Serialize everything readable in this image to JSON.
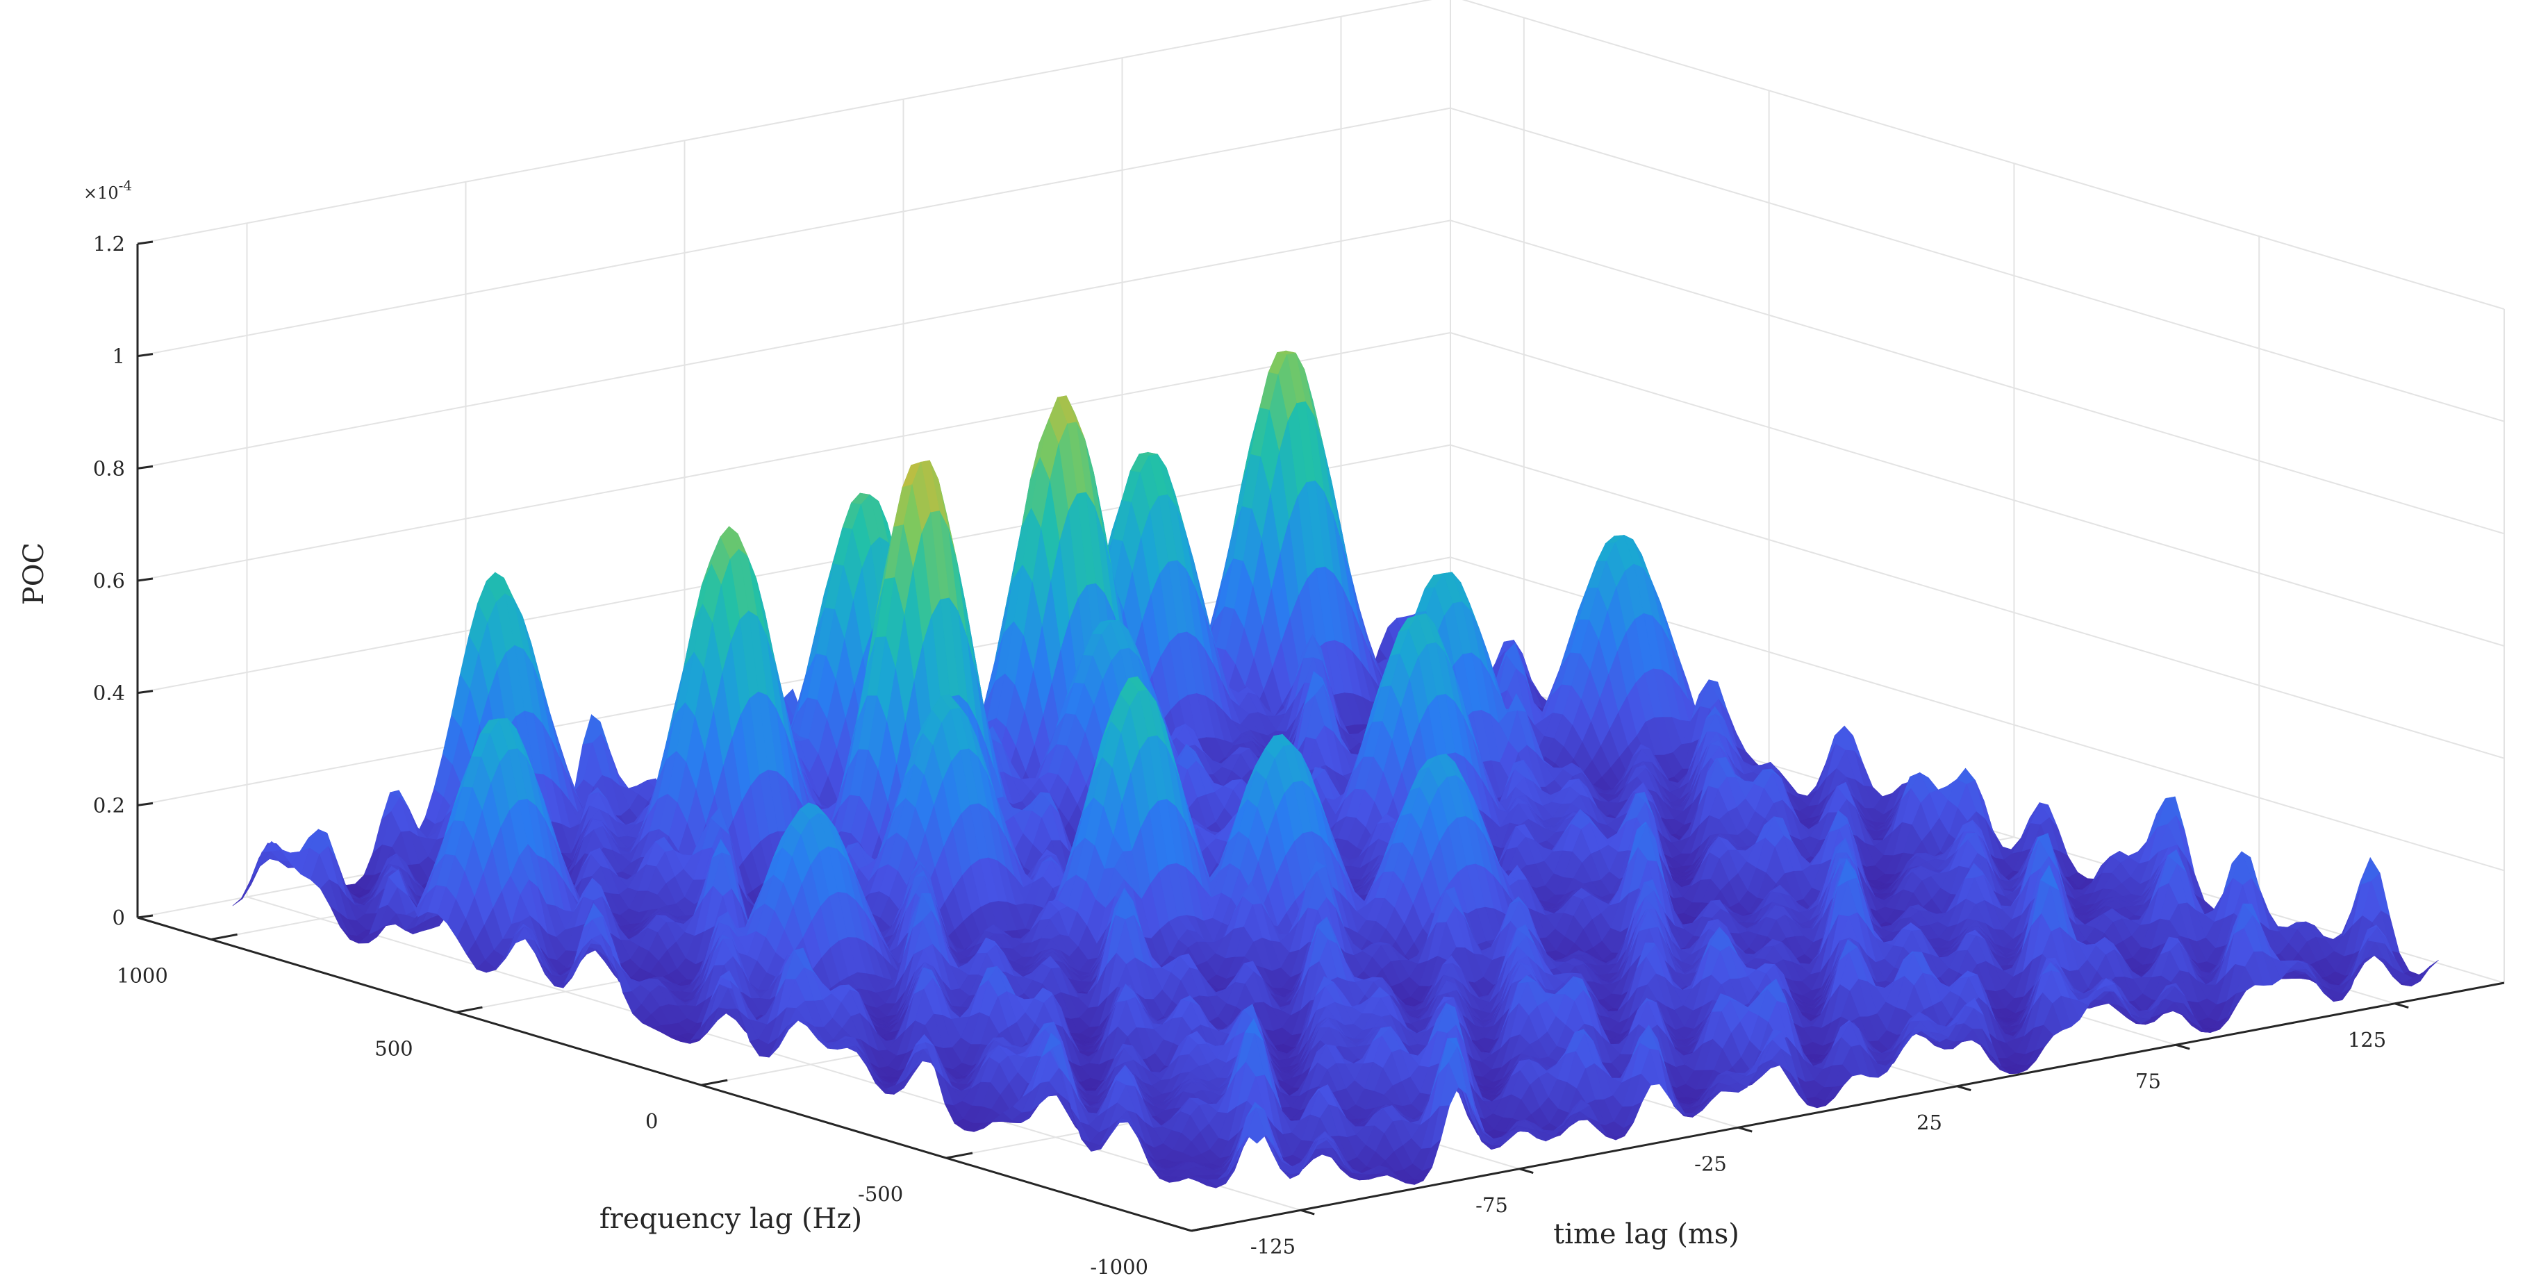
{
  "chart_data": {
    "type": "surface",
    "xlabel": "time lag (ms)",
    "ylabel": "frequency lag (Hz)",
    "zlabel": "POC",
    "z_exponent_label": "×10",
    "z_exponent_power": "-4",
    "xlim": [
      -150,
      150
    ],
    "ylim": [
      -1000,
      1150
    ],
    "zlim": [
      0,
      1.2
    ],
    "z_unit_scale": 0.0001,
    "x_ticks": [
      -125,
      -75,
      -25,
      25,
      75,
      125
    ],
    "x_tick_labels": [
      "-125",
      "-75",
      "-25",
      "25",
      "75",
      "125"
    ],
    "y_ticks": [
      -1000,
      -500,
      0,
      500,
      1000
    ],
    "y_tick_labels": [
      "-1000",
      "-500",
      "0",
      "500",
      "1000"
    ],
    "z_ticks": [
      0,
      0.2,
      0.4,
      0.6,
      0.8,
      1.0,
      1.2
    ],
    "z_tick_labels": [
      "0",
      "0.2",
      "0.4",
      "0.6",
      "0.8",
      "1",
      "1.2"
    ],
    "grid": true,
    "colormap": "parula",
    "colormap_stops": [
      "#3e26a8",
      "#4653e5",
      "#2a7cf0",
      "#1ba6d4",
      "#22c0a8",
      "#7ec85e",
      "#d9b935",
      "#f6dd1e"
    ],
    "data_extent": {
      "x": [
        -135,
        135
      ],
      "y": [
        -1000,
        1090
      ]
    },
    "background_noise_level": 0.2,
    "peaks": [
      {
        "x": -28,
        "y": 640,
        "z": 0.78
      },
      {
        "x": -48,
        "y": 410,
        "z": 0.44
      },
      {
        "x": -34,
        "y": 150,
        "z": 0.52
      },
      {
        "x": 30,
        "y": 870,
        "z": 0.74
      },
      {
        "x": 22,
        "y": 700,
        "z": 0.4
      },
      {
        "x": 98,
        "y": 1020,
        "z": 0.69
      },
      {
        "x": 52,
        "y": 340,
        "z": 0.46
      },
      {
        "x": 125,
        "y": 580,
        "z": 0.43
      },
      {
        "x": -75,
        "y": 1090,
        "z": 0.52
      },
      {
        "x": -120,
        "y": 680,
        "z": 0.44
      },
      {
        "x": -12,
        "y": 50,
        "z": 0.41
      },
      {
        "x": 12,
        "y": -60,
        "z": 0.37
      },
      {
        "x": -55,
        "y": 790,
        "z": 0.65
      },
      {
        "x": 78,
        "y": 520,
        "z": 0.45
      },
      {
        "x": -97,
        "y": 250,
        "z": 0.36
      },
      {
        "x": 62,
        "y": 980,
        "z": 0.57
      },
      {
        "x": -5,
        "y": 960,
        "z": 0.6
      }
    ]
  }
}
